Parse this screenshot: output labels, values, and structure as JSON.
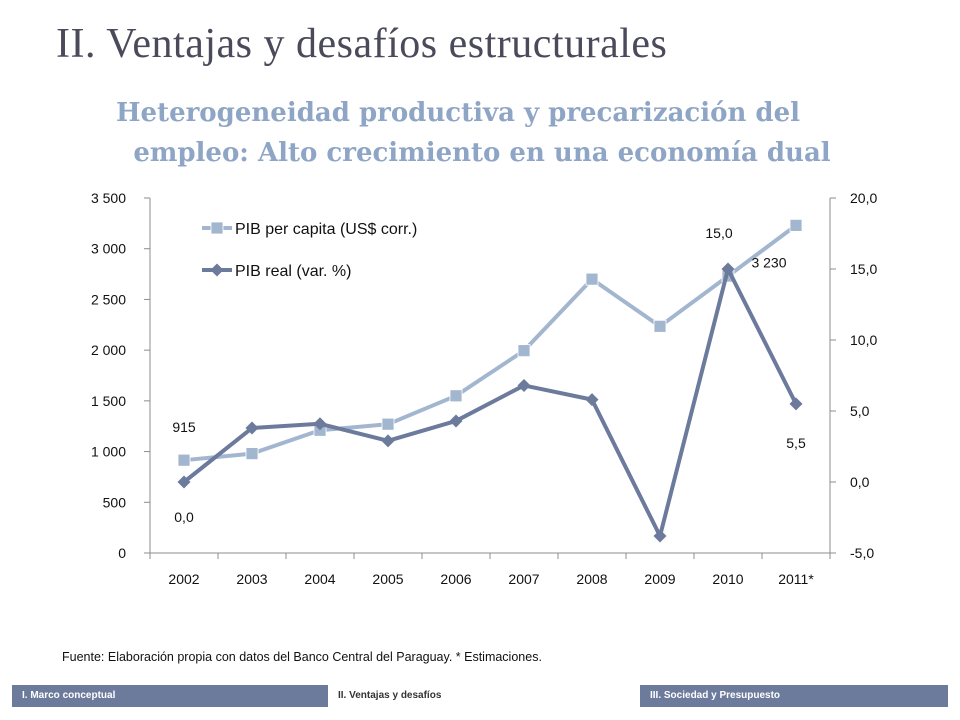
{
  "slide": {
    "title": "II. Ventajas y desafíos estructurales",
    "subtitle_line1": "Heterogeneidad productiva y precarización del",
    "subtitle_line2": "empleo: Alto crecimiento en una economía dual",
    "source": "Fuente: Elaboración propia con datos del Banco Central del Paraguay. * Estimaciones."
  },
  "footer": {
    "items": [
      "I. Marco conceptual",
      "II. Ventajas y desafíos",
      "III. Sociedad y Presupuesto"
    ]
  },
  "chart_data": {
    "type": "line",
    "categories": [
      "2002",
      "2003",
      "2004",
      "2005",
      "2006",
      "2007",
      "2008",
      "2009",
      "2010",
      "2011*"
    ],
    "series": [
      {
        "name": "PIB per capita (US$ corr.)",
        "axis": "left",
        "color": "#a3b6d0",
        "marker": "square",
        "values": [
          915,
          980,
          1210,
          1270,
          1550,
          1995,
          2700,
          2235,
          2730,
          3230
        ]
      },
      {
        "name": "PIB real (var. %)",
        "axis": "right",
        "color": "#6c7a9c",
        "marker": "diamond",
        "values": [
          0.0,
          3.8,
          4.1,
          2.9,
          4.3,
          6.8,
          5.8,
          -3.8,
          15.0,
          5.5
        ]
      }
    ],
    "y_left": {
      "min": 0,
      "max": 3500,
      "ticks": [
        0,
        500,
        1000,
        1500,
        2000,
        2500,
        3000,
        3500
      ],
      "tick_labels": [
        "0",
        "500",
        "1 000",
        "1 500",
        "2 000",
        "2 500",
        "3 000",
        "3 500"
      ]
    },
    "y_right": {
      "min": -5,
      "max": 20,
      "ticks": [
        -5,
        0,
        5,
        10,
        15,
        20
      ],
      "tick_labels": [
        "-5,0",
        "0,0",
        "5,0",
        "10,0",
        "15,0",
        "20,0"
      ]
    },
    "data_labels": [
      {
        "series": 0,
        "index": 0,
        "text": "915"
      },
      {
        "series": 0,
        "index": 9,
        "text": "3 230"
      },
      {
        "series": 1,
        "index": 0,
        "text": "0,0"
      },
      {
        "series": 1,
        "index": 8,
        "text": "15,0"
      },
      {
        "series": 1,
        "index": 9,
        "text": "5,5"
      }
    ],
    "legend": "top-left",
    "grid": false
  }
}
